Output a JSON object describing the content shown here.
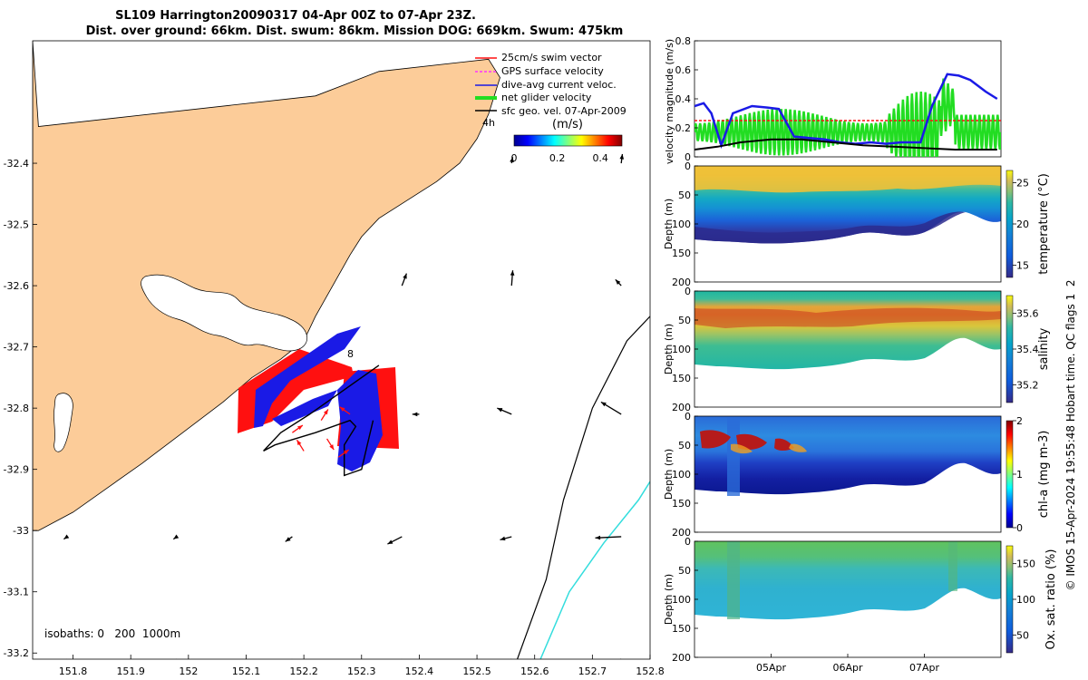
{
  "title": {
    "line1": "SL109 Harrington20090317 04-Apr 00Z to 07-Apr 23Z.",
    "line2": "Dist. over ground: 66km. Dist. swum: 86km. Mission DOG: 669km. Swum: 475km"
  },
  "footer": "© IMOS 15-Apr-2024 19:55:48 Hobart time. QC flags 1  2",
  "colors": {
    "land": "#fccc99",
    "glider_dive": "#1a1ae6",
    "surface_vel": "#ff1010",
    "net_vel": "#22dd22",
    "isobath_200": "#000000",
    "isobath_1000": "#33dddd"
  },
  "chart_data": [
    {
      "type": "map",
      "name": "glider-track-map",
      "xlim": [
        151.73,
        152.8
      ],
      "ylim": [
        -33.21,
        -32.2
      ],
      "x_ticks": [
        "151.8",
        "151.9",
        "152",
        "152.1",
        "152.2",
        "152.3",
        "152.4",
        "152.5",
        "152.6",
        "152.7",
        "152.8"
      ],
      "x_tick_values": [
        151.8,
        151.9,
        152.0,
        152.1,
        152.2,
        152.3,
        152.4,
        152.5,
        152.6,
        152.7,
        152.8
      ],
      "y_ticks": [
        "-32.4",
        "-32.5",
        "-32.6",
        "-32.7",
        "-32.8",
        "-32.9",
        "-33",
        "-33.1",
        "-33.2"
      ],
      "y_tick_values": [
        -32.4,
        -32.5,
        -32.6,
        -32.7,
        -32.8,
        -32.9,
        -33.0,
        -33.1,
        -33.2
      ],
      "legend": [
        {
          "label": "25cm/s swim vector",
          "color": "#ff1010"
        },
        {
          "label": "GPS surface velocity",
          "color": "#ff33ff"
        },
        {
          "label": "dive-avg current veloc.",
          "color": "#1a1ae6"
        },
        {
          "label": "net glider velocity",
          "color": "#22dd22"
        },
        {
          "label": "sfc geo. vel. 07-Apr-2009",
          "color": "#000000"
        }
      ],
      "legend_position": "top-right",
      "colorbar": {
        "label": "(m/s)",
        "ticks": [
          "0",
          "0.2",
          "0.4"
        ],
        "tick_values": [
          0,
          0.2,
          0.4
        ],
        "range": [
          0,
          0.5
        ]
      },
      "annotations": [
        "4h",
        "8"
      ],
      "isobath_text": "isobaths: 0   200  1000m",
      "coastline": [
        [
          151.74,
          -32.34
        ],
        [
          152.22,
          -32.29
        ],
        [
          152.33,
          -32.25
        ],
        [
          152.52,
          -32.23
        ],
        [
          152.54,
          -32.26
        ],
        [
          152.52,
          -32.32
        ],
        [
          152.5,
          -32.36
        ],
        [
          152.47,
          -32.4
        ],
        [
          152.43,
          -32.43
        ],
        [
          152.38,
          -32.46
        ],
        [
          152.33,
          -32.49
        ],
        [
          152.3,
          -32.52
        ],
        [
          152.28,
          -32.55
        ],
        [
          152.25,
          -32.6
        ],
        [
          152.22,
          -32.65
        ],
        [
          152.2,
          -32.69
        ],
        [
          152.16,
          -32.72
        ],
        [
          152.11,
          -32.75
        ],
        [
          152.06,
          -32.79
        ],
        [
          151.99,
          -32.84
        ],
        [
          151.92,
          -32.89
        ],
        [
          151.86,
          -32.93
        ],
        [
          151.8,
          -32.97
        ],
        [
          151.74,
          -33.0
        ]
      ],
      "isobath_200": [
        [
          152.57,
          -33.21
        ],
        [
          152.62,
          -33.08
        ],
        [
          152.65,
          -32.95
        ],
        [
          152.7,
          -32.8
        ],
        [
          152.76,
          -32.69
        ],
        [
          152.8,
          -32.65
        ]
      ],
      "isobath_1000": [
        [
          152.61,
          -33.21
        ],
        [
          152.66,
          -33.1
        ],
        [
          152.72,
          -33.02
        ],
        [
          152.78,
          -32.95
        ],
        [
          152.8,
          -32.92
        ]
      ],
      "track": [
        [
          152.33,
          -32.73
        ],
        [
          152.27,
          -32.77
        ],
        [
          152.21,
          -32.81
        ],
        [
          152.16,
          -32.84
        ],
        [
          152.13,
          -32.87
        ],
        [
          152.15,
          -32.86
        ],
        [
          152.22,
          -32.84
        ],
        [
          152.28,
          -32.82
        ],
        [
          152.29,
          -32.83
        ],
        [
          152.27,
          -32.86
        ],
        [
          152.27,
          -32.91
        ],
        [
          152.3,
          -32.9
        ],
        [
          152.31,
          -32.86
        ],
        [
          152.32,
          -32.82
        ]
      ],
      "surface_vectors": [
        [
          152.18,
          -32.84,
          0.03,
          0.02
        ],
        [
          152.2,
          -32.87,
          -0.02,
          0.03
        ],
        [
          152.24,
          -32.85,
          0.02,
          -0.03
        ],
        [
          152.26,
          -32.88,
          0.03,
          0.02
        ],
        [
          152.28,
          -32.81,
          -0.03,
          0.02
        ],
        [
          152.23,
          -32.82,
          0.02,
          0.03
        ]
      ],
      "geo_vectors": [
        [
          151.79,
          -33.01,
          -0.006,
          -0.004
        ],
        [
          151.98,
          -33.01,
          -0.006,
          -0.004
        ],
        [
          152.18,
          -33.01,
          -0.012,
          -0.008
        ],
        [
          152.37,
          -33.01,
          -0.025,
          -0.012
        ],
        [
          152.56,
          -33.01,
          -0.02,
          -0.005
        ],
        [
          152.75,
          -33.01,
          -0.045,
          -0.002
        ],
        [
          152.37,
          -32.6,
          0.008,
          0.02
        ],
        [
          152.56,
          -32.6,
          0.002,
          0.025
        ],
        [
          152.75,
          -32.6,
          -0.01,
          0.01
        ],
        [
          152.4,
          -32.81,
          -0.012,
          0.0
        ],
        [
          152.56,
          -32.81,
          -0.025,
          0.01
        ],
        [
          152.75,
          -32.81,
          -0.035,
          0.02
        ],
        [
          152.56,
          -32.4,
          0.002,
          0.01
        ],
        [
          152.75,
          -32.4,
          0.002,
          0.015
        ],
        [
          151.79,
          -33.21,
          -0.008,
          -0.02
        ],
        [
          151.98,
          -33.21,
          -0.015,
          -0.02
        ],
        [
          152.18,
          -33.21,
          -0.01,
          -0.02
        ],
        [
          152.37,
          -33.21,
          -0.01,
          -0.02
        ],
        [
          152.56,
          -33.21,
          -0.02,
          -0.015
        ],
        [
          152.75,
          -33.21,
          -0.04,
          -0.02
        ]
      ]
    },
    {
      "type": "line",
      "name": "velocity-magnitude",
      "ylabel": "velocity magnitude (m/s)",
      "y_ticks": [
        "0",
        "0.2",
        "0.4",
        "0.6",
        "0.8"
      ],
      "y_tick_values": [
        0,
        0.2,
        0.4,
        0.6,
        0.8
      ],
      "ylim": [
        0,
        0.8
      ],
      "xlim": [
        0,
        4
      ],
      "series": [
        {
          "name": "dive-avg current veloc.",
          "color": "#1a1ae6",
          "x": [
            0,
            0.12,
            0.22,
            0.35,
            0.5,
            0.75,
            0.95,
            1.1,
            1.3,
            1.5,
            1.7,
            1.9,
            2.1,
            2.3,
            2.5,
            2.7,
            2.95,
            3.1,
            3.3,
            3.45,
            3.6,
            3.8,
            3.95
          ],
          "y": [
            0.35,
            0.37,
            0.3,
            0.08,
            0.3,
            0.35,
            0.34,
            0.33,
            0.14,
            0.13,
            0.12,
            0.1,
            0.09,
            0.1,
            0.09,
            0.1,
            0.1,
            0.35,
            0.57,
            0.56,
            0.53,
            0.45,
            0.4
          ]
        },
        {
          "name": "swim speed",
          "color": "#ff1010",
          "dashed": true,
          "x": [
            0,
            4
          ],
          "y": [
            0.25,
            0.25
          ]
        },
        {
          "name": "sfc geo. vel.",
          "color": "#000000",
          "x": [
            0,
            0.3,
            0.6,
            1.0,
            1.4,
            1.8,
            2.2,
            2.6,
            3.0,
            3.4,
            3.8,
            3.95
          ],
          "y": [
            0.05,
            0.07,
            0.1,
            0.12,
            0.12,
            0.1,
            0.08,
            0.07,
            0.06,
            0.05,
            0.05,
            0.05
          ]
        }
      ],
      "oscillation": {
        "name": "net glider velocity",
        "color": "#22dd22",
        "cycles": 68
      }
    },
    {
      "type": "heatmap",
      "name": "temperature-section",
      "ylabel": "Depth (m)",
      "y_ticks": [
        "0",
        "50",
        "100",
        "150",
        "200"
      ],
      "y_tick_values": [
        0,
        50,
        100,
        150,
        200
      ],
      "ylim": [
        0,
        200
      ],
      "cbar_label": "temperature (°C)",
      "cbar_ticks": [
        "15",
        "20",
        "25"
      ],
      "cbar_tick_values": [
        15,
        20,
        25
      ],
      "cbar_range": [
        13.5,
        26.5
      ]
    },
    {
      "type": "heatmap",
      "name": "salinity-section",
      "ylabel": "Depth (m)",
      "y_ticks": [
        "0",
        "50",
        "100",
        "150",
        "200"
      ],
      "y_tick_values": [
        0,
        50,
        100,
        150,
        200
      ],
      "ylim": [
        0,
        200
      ],
      "cbar_label": "salinity",
      "cbar_ticks": [
        "35.2",
        "35.4",
        "35.6"
      ],
      "cbar_tick_values": [
        35.2,
        35.4,
        35.6
      ],
      "cbar_range": [
        35.1,
        35.7
      ]
    },
    {
      "type": "heatmap",
      "name": "chla-section",
      "ylabel": "Depth (m)",
      "y_ticks": [
        "0",
        "50",
        "100",
        "150",
        "200"
      ],
      "y_tick_values": [
        0,
        50,
        100,
        150,
        200
      ],
      "ylim": [
        0,
        200
      ],
      "cbar_label": "chl-a (mg m-3)",
      "cbar_ticks": [
        "0",
        "1",
        "2"
      ],
      "cbar_tick_values": [
        0,
        1,
        2
      ],
      "cbar_range": [
        0,
        2
      ]
    },
    {
      "type": "heatmap",
      "name": "oxygen-section",
      "ylabel": "Depth (m)",
      "y_ticks": [
        "0",
        "50",
        "100",
        "150",
        "200"
      ],
      "y_tick_values": [
        0,
        50,
        100,
        150,
        200
      ],
      "ylim": [
        0,
        200
      ],
      "cbar_label": "Ox. sat. ratio (%)",
      "cbar_ticks": [
        "50",
        "100",
        "150"
      ],
      "cbar_tick_values": [
        50,
        100,
        150
      ],
      "cbar_range": [
        25,
        175
      ],
      "x_ticks": [
        "05Apr",
        "06Apr",
        "07Apr"
      ],
      "x_tick_values": [
        1,
        2,
        3
      ],
      "xlim": [
        0,
        4
      ]
    }
  ]
}
